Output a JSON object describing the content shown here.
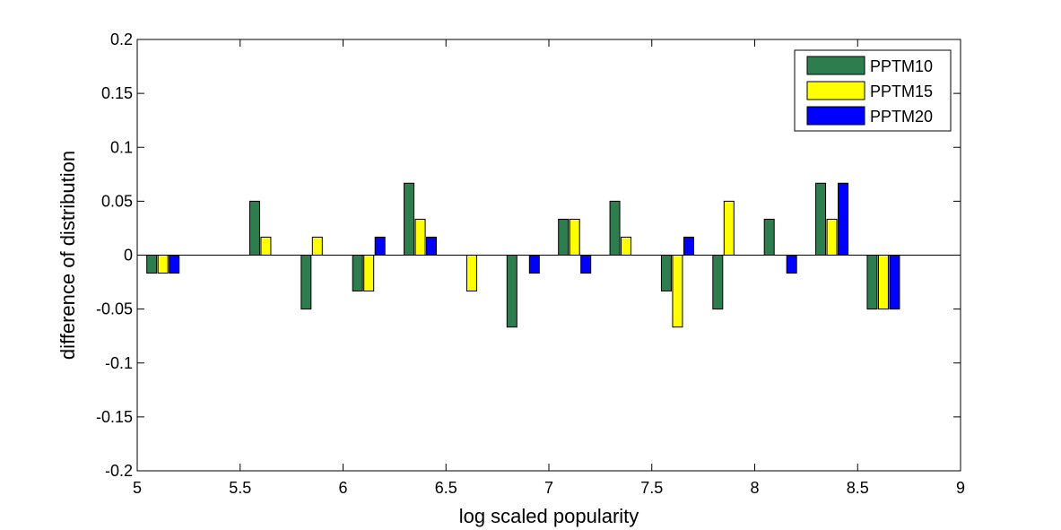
{
  "chart_data": {
    "type": "bar",
    "xlabel": "log scaled popularity",
    "ylabel": "difference of distribution",
    "xlim": [
      5,
      9
    ],
    "ylim": [
      -0.2,
      0.2
    ],
    "x_ticks": [
      "5",
      "5.5",
      "6",
      "6.5",
      "7",
      "7.5",
      "8",
      "8.5",
      "9"
    ],
    "y_ticks": [
      "0.2",
      "0.15",
      "0.1",
      "0.05",
      "0",
      "-0.05",
      "-0.1",
      "-0.15",
      "-0.2"
    ],
    "x_tick_values": [
      5,
      5.5,
      6,
      6.5,
      7,
      7.5,
      8,
      8.5,
      9
    ],
    "y_tick_values": [
      0.2,
      0.15,
      0.1,
      0.05,
      0,
      -0.05,
      -0.1,
      -0.15,
      -0.2
    ],
    "x": [
      5.125,
      5.375,
      5.625,
      5.875,
      6.125,
      6.375,
      6.625,
      6.875,
      7.125,
      7.375,
      7.625,
      7.875,
      8.125,
      8.375,
      8.625
    ],
    "legend_position": "top-right",
    "grid": false,
    "series": [
      {
        "name": "PPTM10",
        "color": "#2e7d4f",
        "values": [
          -0.0167,
          0,
          0.05,
          -0.05,
          -0.0333,
          0.0667,
          0,
          -0.0667,
          0.0333,
          0.05,
          -0.0333,
          -0.05,
          0.0333,
          0.0667,
          -0.05
        ]
      },
      {
        "name": "PPTM15",
        "color": "#ffff00",
        "values": [
          -0.0167,
          0,
          0.0167,
          0.0167,
          -0.0333,
          0.0333,
          -0.0333,
          0,
          0.0333,
          0.0167,
          -0.0667,
          0.05,
          0,
          0.0333,
          -0.05
        ]
      },
      {
        "name": "PPTM20",
        "color": "#0000ff",
        "values": [
          -0.0167,
          0,
          0,
          0,
          0.0167,
          0.0167,
          0,
          -0.0167,
          -0.0167,
          0,
          0.0167,
          0,
          -0.0167,
          0.0667,
          -0.05
        ]
      }
    ]
  }
}
